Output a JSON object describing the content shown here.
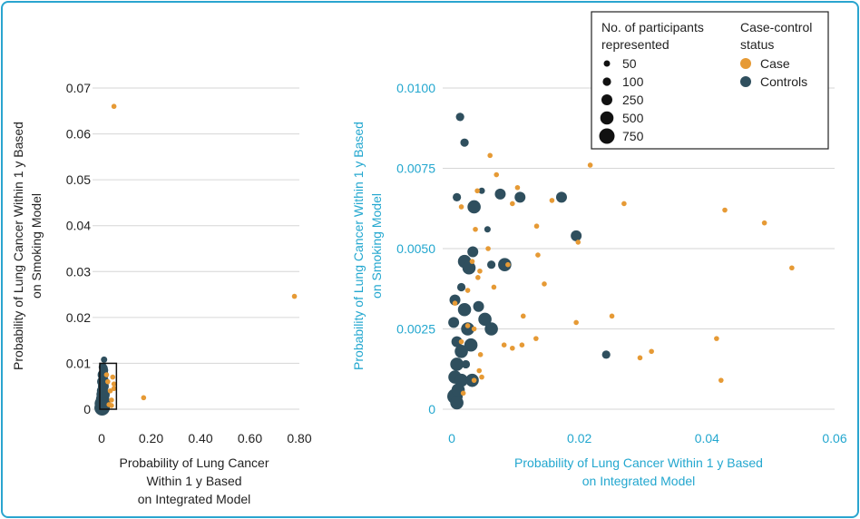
{
  "colors": {
    "case": "#e69a35",
    "controls": "#2f4f5e",
    "accent": "#23a7cf",
    "grid": "#d6d6d6",
    "axis_text": "#222222"
  },
  "chart_data": [
    {
      "type": "scatter",
      "name": "full-range",
      "xlabel": [
        "Probability of Lung Cancer",
        "Within 1 y Based",
        "on Integrated Model"
      ],
      "ylabel": [
        "Probability of Lung Cancer Within 1 y Based",
        "on Smoking Model"
      ],
      "xlim": [
        0,
        0.8
      ],
      "ylim": [
        0,
        0.07
      ],
      "xticks": [
        0,
        0.2,
        0.4,
        0.6,
        0.8
      ],
      "xtick_labels": [
        "0",
        "0.20",
        "0.40",
        "0.60",
        "0.80"
      ],
      "yticks": [
        0,
        0.01,
        0.02,
        0.03,
        0.04,
        0.05,
        0.06,
        0.07
      ],
      "ytick_labels": [
        "0",
        "0.01",
        "0.02",
        "0.03",
        "0.04",
        "0.05",
        "0.06",
        "0.07"
      ],
      "grid": true,
      "zoom_box": {
        "x": [
          0,
          0.06
        ],
        "y": [
          0,
          0.01
        ]
      },
      "series": [
        {
          "name": "Case",
          "points": [
            [
              0.05,
              0.066
            ],
            [
              0.78,
              0.0246
            ],
            [
              0.17,
              0.0025
            ],
            [
              0.045,
              0.007
            ],
            [
              0.05,
              0.0055
            ],
            [
              0.035,
              0.004
            ],
            [
              0.04,
              0.002
            ],
            [
              0.03,
              0.001
            ],
            [
              0.05,
              0.0045
            ],
            [
              0.025,
              0.006
            ],
            [
              0.02,
              0.0075
            ],
            [
              0.04,
              0.0008
            ]
          ]
        },
        {
          "name": "Controls",
          "points": [
            [
              0.01,
              0.0108,
              1
            ],
            [
              0.005,
              0.0092,
              2
            ],
            [
              0.01,
              0.0085,
              2
            ],
            [
              0.006,
              0.0075,
              3
            ],
            [
              0.008,
              0.0068,
              2
            ],
            [
              0.004,
              0.006,
              3
            ],
            [
              0.007,
              0.005,
              3
            ],
            [
              0.003,
              0.004,
              3
            ],
            [
              0.006,
              0.0032,
              4
            ],
            [
              0.004,
              0.0022,
              4
            ],
            [
              0.003,
              0.0012,
              5
            ],
            [
              0.002,
              0.0003,
              5
            ],
            [
              0.012,
              0.003,
              2
            ],
            [
              0.015,
              0.0018,
              2
            ],
            [
              0.01,
              0.001,
              4
            ],
            [
              0.005,
              0.0005,
              4
            ],
            [
              0.015,
              0.006,
              2
            ],
            [
              0.012,
              0.009,
              1
            ]
          ]
        }
      ]
    },
    {
      "type": "scatter",
      "name": "zoomed",
      "xlabel": [
        "Probability of Lung Cancer Within 1 y Based",
        "on Integrated Model"
      ],
      "ylabel": [
        "Probability of Lung Cancer Within 1 y Based",
        "on Smoking Model"
      ],
      "xlim": [
        0,
        0.06
      ],
      "ylim": [
        0,
        0.01
      ],
      "xticks": [
        0,
        0.02,
        0.04,
        0.06
      ],
      "xtick_labels": [
        "0",
        "0.02",
        "0.04",
        "0.06"
      ],
      "yticks": [
        0,
        0.0025,
        0.005,
        0.0075,
        0.01
      ],
      "ytick_labels": [
        "0",
        "0.0025",
        "0.0050",
        "0.0075",
        "0.0100"
      ],
      "grid": true,
      "series": [
        {
          "name": "Case",
          "points": [
            [
              0.006,
              0.0079
            ],
            [
              0.0217,
              0.0076
            ],
            [
              0.007,
              0.0073
            ],
            [
              0.004,
              0.0068
            ],
            [
              0.0103,
              0.0069
            ],
            [
              0.0015,
              0.0063
            ],
            [
              0.0095,
              0.0064
            ],
            [
              0.0157,
              0.0065
            ],
            [
              0.027,
              0.0064
            ],
            [
              0.0428,
              0.0062
            ],
            [
              0.049,
              0.0058
            ],
            [
              0.0133,
              0.0057
            ],
            [
              0.0198,
              0.0052
            ],
            [
              0.0533,
              0.0044
            ],
            [
              0.0037,
              0.0056
            ],
            [
              0.0057,
              0.005
            ],
            [
              0.0135,
              0.0048
            ],
            [
              0.0032,
              0.0046
            ],
            [
              0.0088,
              0.0045
            ],
            [
              0.0044,
              0.0043
            ],
            [
              0.0041,
              0.0041
            ],
            [
              0.0145,
              0.0039
            ],
            [
              0.0066,
              0.0038
            ],
            [
              0.0025,
              0.0037
            ],
            [
              0.0112,
              0.0029
            ],
            [
              0.0251,
              0.0029
            ],
            [
              0.0195,
              0.0027
            ],
            [
              0.0035,
              0.0025
            ],
            [
              0.0132,
              0.0022
            ],
            [
              0.0415,
              0.0022
            ],
            [
              0.0082,
              0.002
            ],
            [
              0.0095,
              0.0019
            ],
            [
              0.011,
              0.002
            ],
            [
              0.0313,
              0.0018
            ],
            [
              0.0295,
              0.0016
            ],
            [
              0.0043,
              0.0012
            ],
            [
              0.0047,
              0.001
            ],
            [
              0.0422,
              0.0009
            ],
            [
              0.0018,
              0.0005
            ],
            [
              0.0025,
              0.0026
            ],
            [
              0.0005,
              0.0033
            ],
            [
              0.0045,
              0.0017
            ],
            [
              0.0035,
              0.0009
            ],
            [
              0.0015,
              0.0021
            ]
          ]
        },
        {
          "name": "Controls",
          "points": [
            [
              0.0013,
              0.0091,
              2
            ],
            [
              0.002,
              0.0083,
              2
            ],
            [
              0.0047,
              0.0068,
              1
            ],
            [
              0.0008,
              0.0066,
              2
            ],
            [
              0.0035,
              0.0063,
              4
            ],
            [
              0.0076,
              0.0067,
              3
            ],
            [
              0.0107,
              0.0066,
              3
            ],
            [
              0.0172,
              0.0066,
              3
            ],
            [
              0.0195,
              0.0054,
              3
            ],
            [
              0.0056,
              0.0056,
              1
            ],
            [
              0.0033,
              0.0049,
              3
            ],
            [
              0.002,
              0.0046,
              4
            ],
            [
              0.0027,
              0.0044,
              4
            ],
            [
              0.0062,
              0.0045,
              2
            ],
            [
              0.0083,
              0.0045,
              4
            ],
            [
              0.0015,
              0.0038,
              2
            ],
            [
              0.0005,
              0.0034,
              3
            ],
            [
              0.002,
              0.0031,
              4
            ],
            [
              0.0042,
              0.0032,
              3
            ],
            [
              0.0052,
              0.0028,
              4
            ],
            [
              0.0062,
              0.0025,
              4
            ],
            [
              0.0025,
              0.0025,
              4
            ],
            [
              0.0008,
              0.0021,
              3
            ],
            [
              0.003,
              0.002,
              4
            ],
            [
              0.0015,
              0.0018,
              4
            ],
            [
              0.0008,
              0.0014,
              4
            ],
            [
              0.0022,
              0.0014,
              2
            ],
            [
              0.0005,
              0.001,
              4
            ],
            [
              0.0015,
              0.0009,
              4
            ],
            [
              0.0032,
              0.0009,
              4
            ],
            [
              0.0005,
              0.0004,
              5
            ],
            [
              0.0008,
              0.0002,
              4
            ],
            [
              0.0242,
              0.0017,
              2
            ],
            [
              0.0003,
              0.0027,
              3
            ],
            [
              0.001,
              0.0006,
              4
            ]
          ]
        }
      ]
    }
  ],
  "legend": {
    "size_title": [
      "No. of participants",
      "represented"
    ],
    "sizes": [
      {
        "label": "50",
        "r": 3.5
      },
      {
        "label": "100",
        "r": 4.6
      },
      {
        "label": "250",
        "r": 6
      },
      {
        "label": "500",
        "r": 7.3
      },
      {
        "label": "750",
        "r": 8.5
      }
    ],
    "status_title": [
      "Case-control",
      "status"
    ],
    "statuses": [
      {
        "label": "Case",
        "color_key": "case"
      },
      {
        "label": "Controls",
        "color_key": "controls"
      }
    ]
  }
}
